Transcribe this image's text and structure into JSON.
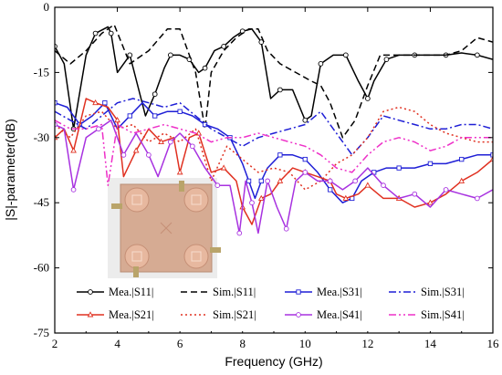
{
  "chart_data": {
    "type": "line",
    "xlabel": "Frequency (GHz)",
    "ylabel": "|S|-parameter(dB)",
    "xlim": [
      2,
      16
    ],
    "ylim": [
      -75,
      0
    ],
    "xticks": [
      "2",
      "4",
      "6",
      "8",
      "10",
      "12",
      "14",
      "16"
    ],
    "yticks": [
      "0",
      "-15",
      "-30",
      "-45",
      "-60",
      "-75"
    ],
    "grid": false,
    "legend_position": "bottom-right",
    "inset_image": "photo of fabricated four-port antenna prototype",
    "series": [
      {
        "name": "Mea.|S11|",
        "color": "#000000",
        "dash": "solid",
        "marker": "circle",
        "x": [
          2,
          2.3,
          2.6,
          3.0,
          3.3,
          3.7,
          3.8,
          4.0,
          4.4,
          4.9,
          5.2,
          5.5,
          5.7,
          6.0,
          6.3,
          6.6,
          6.8,
          7.1,
          7.4,
          7.7,
          8.0,
          8.3,
          8.6,
          8.9,
          9.2,
          9.6,
          10.0,
          10.2,
          10.5,
          10.9,
          11.3,
          11.7,
          12.0,
          12.2,
          12.6,
          13.0,
          13.5,
          14.0,
          14.5,
          15.0,
          15.5,
          16.0
        ],
        "y": [
          -9,
          -13,
          -28,
          -11,
          -6,
          -4.5,
          -6,
          -15,
          -11,
          -25,
          -20,
          -14,
          -11,
          -11,
          -12,
          -15,
          -14,
          -10,
          -9,
          -7,
          -5.5,
          -5,
          -8,
          -21,
          -19,
          -19,
          -26,
          -25,
          -13,
          -11,
          -11,
          -17,
          -21,
          -17,
          -12,
          -11,
          -11,
          -11,
          -11,
          -10.5,
          -11,
          -12
        ]
      },
      {
        "name": "Sim.|S11|",
        "color": "#000000",
        "dash": "dashed",
        "marker": "none",
        "x": [
          2,
          2.5,
          3.0,
          3.5,
          3.9,
          4.4,
          5.0,
          5.6,
          6.0,
          6.5,
          6.8,
          7.0,
          7.4,
          7.8,
          8.2,
          8.5,
          8.8,
          9.2,
          9.7,
          10.2,
          10.5,
          10.8,
          11.2,
          11.6,
          12.0,
          12.4,
          12.8,
          13.2,
          13.8,
          14.5,
          15.0,
          15.5,
          16.0
        ],
        "y": [
          -10,
          -13,
          -10,
          -6,
          -4,
          -13,
          -10,
          -5,
          -5,
          -15,
          -28,
          -15,
          -10,
          -7,
          -5,
          -5,
          -10,
          -13,
          -15,
          -17,
          -18,
          -22,
          -30,
          -26,
          -18,
          -11,
          -11,
          -11,
          -11,
          -11,
          -10,
          -7,
          -8
        ]
      },
      {
        "name": "Mea.|S31|",
        "color": "#1f1fd6",
        "dash": "solid",
        "marker": "square",
        "x": [
          2,
          2.4,
          2.8,
          3.2,
          3.6,
          4.0,
          4.4,
          4.8,
          5.2,
          5.6,
          6.0,
          6.4,
          6.8,
          7.2,
          7.6,
          8.0,
          8.2,
          8.4,
          8.6,
          8.8,
          9.2,
          9.6,
          10.0,
          10.4,
          10.8,
          11.2,
          11.5,
          11.8,
          12.2,
          12.6,
          13.0,
          13.5,
          14.0,
          14.5,
          15.0,
          15.5,
          16.0
        ],
        "y": [
          -22,
          -23,
          -27,
          -25,
          -22,
          -28,
          -25,
          -22,
          -25,
          -24,
          -24,
          -25,
          -27,
          -28,
          -30,
          -36,
          -40,
          -44,
          -40,
          -37,
          -34,
          -34,
          -35,
          -38,
          -42,
          -45,
          -44,
          -40,
          -38,
          -37,
          -37,
          -37,
          -36,
          -36,
          -35,
          -34,
          -34
        ]
      },
      {
        "name": "Sim.|S31|",
        "color": "#1f1fd6",
        "dash": "dashdot",
        "marker": "none",
        "x": [
          2,
          2.5,
          3.0,
          3.5,
          4.0,
          4.5,
          5.0,
          5.5,
          6.0,
          6.5,
          7.0,
          7.5,
          8.0,
          8.5,
          9.0,
          9.5,
          10.0,
          10.5,
          11.0,
          11.5,
          12.0,
          12.5,
          13.0,
          13.5,
          14.0,
          14.5,
          15.0,
          15.5,
          16.0
        ],
        "y": [
          -24,
          -26,
          -28,
          -25,
          -22,
          -21,
          -22,
          -23,
          -22,
          -25,
          -28,
          -30,
          -32,
          -30,
          -29,
          -28,
          -27,
          -24,
          -29,
          -34,
          -30,
          -25,
          -26,
          -27,
          -28,
          -28,
          -27,
          -27,
          -28
        ]
      },
      {
        "name": "Mea.|S21|",
        "color": "#e03020",
        "dash": "solid",
        "marker": "triangle",
        "x": [
          2,
          2.3,
          2.6,
          3.0,
          3.3,
          3.7,
          4.0,
          4.2,
          4.6,
          5.0,
          5.4,
          5.8,
          6.0,
          6.3,
          6.6,
          7.0,
          7.4,
          7.8,
          8.0,
          8.3,
          8.6,
          8.9,
          9.2,
          9.6,
          10.0,
          10.4,
          10.8,
          11.0,
          11.3,
          11.7,
          12.0,
          12.5,
          13.0,
          13.5,
          14.0,
          14.5,
          15.0,
          15.5,
          16.0
        ],
        "y": [
          -30,
          -28,
          -33,
          -21,
          -22,
          -23,
          -26,
          -39,
          -33,
          -28,
          -31,
          -30,
          -38,
          -30,
          -29,
          -38,
          -37,
          -40,
          -46,
          -50,
          -44,
          -43,
          -40,
          -37,
          -38,
          -39,
          -40,
          -43,
          -44,
          -43,
          -41,
          -44,
          -44,
          -46,
          -45,
          -43,
          -40,
          -38,
          -35
        ]
      },
      {
        "name": "Sim.|S21|",
        "color": "#e03020",
        "dash": "dotted",
        "marker": "none",
        "x": [
          2,
          2.5,
          3.0,
          3.5,
          4.0,
          4.5,
          5.0,
          5.5,
          6.0,
          6.5,
          7.0,
          7.5,
          8.0,
          8.5,
          9.0,
          9.5,
          10.0,
          10.5,
          11.0,
          11.5,
          12.0,
          12.5,
          13.0,
          13.5,
          14.0,
          14.5,
          15.0,
          15.5,
          16.0
        ],
        "y": [
          -27,
          -30,
          -25,
          -24,
          -28,
          -27,
          -31,
          -29,
          -31,
          -28,
          -40,
          -32,
          -35,
          -38,
          -37,
          -38,
          -42,
          -40,
          -36,
          -34,
          -30,
          -24,
          -23,
          -24,
          -27,
          -29,
          -30,
          -31,
          -31
        ]
      },
      {
        "name": "Mea.|S41|",
        "color": "#a832e0",
        "dash": "solid",
        "marker": "circle",
        "x": [
          2,
          2.3,
          2.6,
          3.0,
          3.4,
          3.8,
          4.2,
          4.6,
          5.0,
          5.3,
          5.7,
          6.0,
          6.4,
          6.8,
          7.2,
          7.6,
          7.9,
          8.1,
          8.3,
          8.5,
          8.8,
          9.1,
          9.4,
          9.7,
          10.0,
          10.4,
          10.8,
          11.2,
          11.6,
          12.0,
          12.5,
          13.0,
          13.5,
          14.0,
          14.5,
          15.0,
          15.5,
          16.0
        ],
        "y": [
          -27,
          -28,
          -42,
          -30,
          -28,
          -26,
          -34,
          -29,
          -34,
          -39,
          -31,
          -29,
          -32,
          -37,
          -41,
          -41,
          -52,
          -40,
          -45,
          -52,
          -40,
          -46,
          -51,
          -40,
          -38,
          -40,
          -40,
          -42,
          -40,
          -37,
          -41,
          -44,
          -43,
          -46,
          -42,
          -43,
          -44,
          -42
        ]
      },
      {
        "name": "Sim.|S41|",
        "color": "#ee30c8",
        "dash": "dashdotdot",
        "marker": "none",
        "x": [
          2,
          2.5,
          3.0,
          3.5,
          3.7,
          4.0,
          4.5,
          5.0,
          5.5,
          6.0,
          6.5,
          7.0,
          7.5,
          8.0,
          8.5,
          9.0,
          9.5,
          10.0,
          10.5,
          11.0,
          11.5,
          12.0,
          12.5,
          13.0,
          13.5,
          14.0,
          14.5,
          15.0,
          15.5,
          16.0
        ],
        "y": [
          -26,
          -28,
          -28,
          -27,
          -41,
          -27,
          -29,
          -28,
          -27,
          -28,
          -29,
          -31,
          -30,
          -30,
          -29,
          -30,
          -31,
          -32,
          -34,
          -37,
          -38,
          -34,
          -31,
          -30,
          -31,
          -33,
          -32,
          -30,
          -30,
          -30
        ]
      }
    ]
  }
}
